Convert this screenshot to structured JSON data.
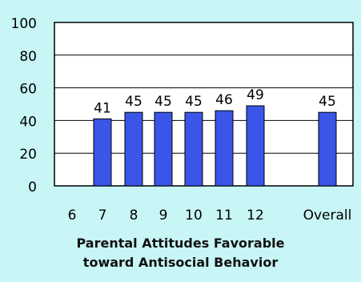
{
  "chart_data": {
    "type": "bar",
    "title_lines": [
      "Parental Attitudes Favorable",
      "toward Antisocial Behavior"
    ],
    "categories": [
      "6",
      "7",
      "8",
      "9",
      "10",
      "11",
      "12",
      "Overall"
    ],
    "values": [
      null,
      41,
      45,
      45,
      45,
      46,
      49,
      45
    ],
    "data_labels": [
      "",
      "41",
      "45",
      "45",
      "45",
      "46",
      "49",
      "45"
    ],
    "ylim": [
      0,
      100
    ],
    "yticks": [
      0,
      20,
      40,
      60,
      80,
      100
    ],
    "grid": true,
    "bar_color": "#3a55e8",
    "bar_edge_color": "#000000",
    "plot_background": "#ffffff",
    "background": "#c8f5f5"
  }
}
